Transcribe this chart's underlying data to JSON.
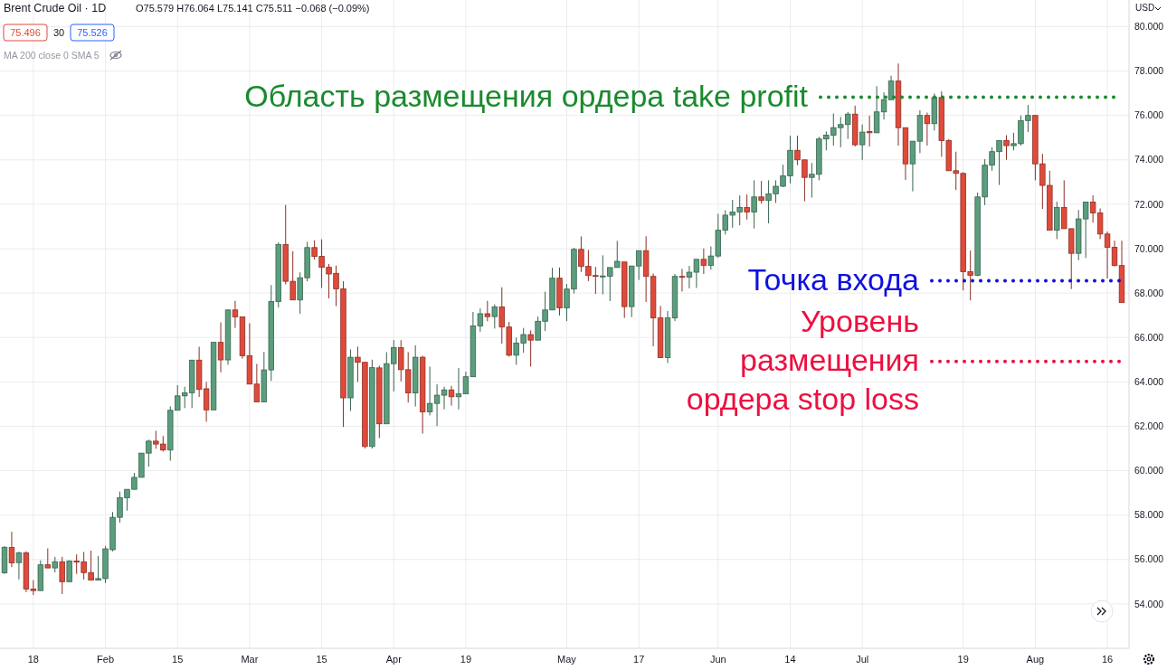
{
  "chart_data": {
    "type": "candlestick",
    "title": "Brent Crude Oil · 1D",
    "ylabel": "USD",
    "annotations": [
      "O75.579 H76.064 L75.141 C75.511 −0.068 (−0.09%)",
      "75.496",
      "30",
      "75.526",
      "MA 200 close 0 SMA 5"
    ],
    "categories": [
      null,
      null,
      null,
      null,
      "18",
      null,
      null,
      null,
      null,
      null,
      null,
      null,
      null,
      null,
      "Feb",
      null,
      null,
      null,
      null,
      null,
      null,
      null,
      null,
      null,
      "15",
      null,
      null,
      null,
      null,
      null,
      null,
      null,
      null,
      null,
      "Mar",
      null,
      null,
      null,
      null,
      null,
      null,
      null,
      null,
      null,
      "15",
      null,
      null,
      null,
      null,
      null,
      null,
      null,
      null,
      null,
      "Apr",
      null,
      null,
      null,
      null,
      null,
      null,
      null,
      null,
      null,
      "19",
      null,
      null,
      null,
      null,
      null,
      null,
      null,
      null,
      null,
      null,
      null,
      null,
      null,
      "May",
      null,
      null,
      null,
      null,
      null,
      null,
      null,
      null,
      null,
      "17",
      null,
      null,
      null,
      null,
      null,
      null,
      null,
      null,
      null,
      null,
      "Jun",
      null,
      null,
      null,
      null,
      null,
      null,
      null,
      null,
      null,
      "14",
      null,
      null,
      null,
      null,
      null,
      null,
      null,
      null,
      null,
      "Jul",
      null,
      null,
      null,
      null,
      null,
      null,
      null,
      null,
      null,
      null,
      null,
      null,
      null,
      "19",
      null,
      null,
      null,
      null,
      null,
      null,
      null,
      null,
      null,
      "Aug",
      null,
      null,
      null,
      null,
      null,
      null,
      null,
      null,
      null,
      "16",
      null,
      null
    ],
    "ohlc": [
      [
        55.4,
        56.6,
        55.35,
        56.55
      ],
      [
        56.54,
        57.25,
        55.66,
        55.85
      ],
      [
        55.86,
        56.35,
        55.1,
        56.3
      ],
      [
        56.3,
        56.37,
        54.53,
        54.67
      ],
      [
        54.67,
        55.07,
        54.4,
        54.6
      ],
      [
        54.6,
        55.96,
        54.6,
        55.76
      ],
      [
        55.76,
        56.5,
        55.62,
        55.62
      ],
      [
        55.62,
        56.12,
        55.42,
        55.9
      ],
      [
        55.9,
        56.12,
        54.44,
        55.0
      ],
      [
        55.0,
        55.97,
        55.0,
        55.93
      ],
      [
        55.93,
        56.23,
        55.35,
        55.88
      ],
      [
        55.9,
        56.34,
        55.1,
        55.41
      ],
      [
        55.41,
        56.4,
        55.07,
        55.07
      ],
      [
        55.07,
        56.16,
        55.07,
        55.14
      ],
      [
        55.14,
        56.6,
        54.94,
        56.48
      ],
      [
        56.44,
        58.14,
        56.37,
        57.9
      ],
      [
        57.9,
        59.06,
        57.66,
        58.78
      ],
      [
        58.78,
        59.16,
        58.2,
        59.16
      ],
      [
        59.16,
        59.9,
        59.16,
        59.7
      ],
      [
        59.7,
        60.79,
        59.7,
        60.79
      ],
      [
        60.79,
        61.4,
        60.18,
        61.33
      ],
      [
        61.33,
        61.8,
        60.99,
        61.2
      ],
      [
        61.2,
        61.56,
        60.86,
        60.93
      ],
      [
        60.93,
        62.9,
        60.45,
        62.72
      ],
      [
        62.72,
        63.85,
        62.72,
        63.37
      ],
      [
        63.37,
        63.78,
        62.82,
        63.51
      ],
      [
        63.51,
        64.98,
        62.82,
        64.98
      ],
      [
        64.98,
        65.58,
        63.32,
        63.66
      ],
      [
        63.69,
        64.0,
        62.2,
        62.74
      ],
      [
        62.74,
        65.8,
        62.74,
        65.78
      ],
      [
        65.78,
        66.68,
        64.43,
        64.99
      ],
      [
        64.99,
        67.24,
        64.77,
        67.24
      ],
      [
        67.24,
        67.65,
        66.43,
        66.93
      ],
      [
        66.93,
        66.93,
        65.05,
        65.18
      ],
      [
        65.18,
        66.64,
        63.9,
        63.9
      ],
      [
        63.9,
        64.81,
        63.1,
        63.1
      ],
      [
        63.1,
        65.35,
        63.1,
        64.54
      ],
      [
        64.54,
        68.36,
        64.04,
        67.62
      ],
      [
        67.62,
        70.28,
        67.35,
        70.19
      ],
      [
        70.19,
        71.97,
        68.39,
        68.53
      ],
      [
        68.53,
        69.88,
        67.69,
        67.69
      ],
      [
        67.69,
        68.93,
        67.07,
        68.69
      ],
      [
        68.69,
        70.31,
        68.53,
        70.05
      ],
      [
        70.05,
        70.38,
        69.51,
        69.65
      ],
      [
        69.65,
        70.42,
        68.23,
        69.16
      ],
      [
        69.16,
        69.31,
        67.76,
        68.86
      ],
      [
        68.89,
        69.24,
        67.41,
        68.19
      ],
      [
        68.19,
        68.53,
        61.97,
        63.28
      ],
      [
        63.28,
        65.46,
        62.69,
        65.11
      ],
      [
        65.11,
        65.59,
        64.0,
        64.88
      ],
      [
        64.88,
        64.88,
        61.0,
        61.09
      ],
      [
        61.09,
        65.0,
        61.0,
        64.64
      ],
      [
        64.63,
        64.73,
        61.47,
        62.11
      ],
      [
        62.11,
        65.34,
        62.11,
        64.82
      ],
      [
        64.82,
        65.88,
        63.57,
        65.54
      ],
      [
        65.54,
        65.88,
        64.02,
        64.55
      ],
      [
        64.55,
        65.34,
        63.07,
        63.5
      ],
      [
        63.5,
        65.65,
        62.89,
        65.11
      ],
      [
        65.11,
        65.18,
        61.67,
        62.65
      ],
      [
        62.65,
        64.69,
        62.49,
        63.03
      ],
      [
        63.03,
        63.89,
        62.01,
        63.4
      ],
      [
        63.4,
        63.78,
        62.76,
        63.64
      ],
      [
        63.64,
        63.82,
        62.93,
        63.33
      ],
      [
        63.33,
        64.63,
        62.76,
        63.46
      ],
      [
        63.46,
        64.46,
        63.46,
        64.23
      ],
      [
        64.23,
        67.15,
        64.23,
        66.52
      ],
      [
        66.52,
        67.31,
        66.26,
        67.07
      ],
      [
        67.07,
        67.65,
        66.73,
        66.94
      ],
      [
        66.94,
        67.49,
        66.4,
        67.38
      ],
      [
        67.38,
        68.26,
        65.72,
        66.47
      ],
      [
        66.47,
        66.7,
        65.14,
        65.2
      ],
      [
        65.2,
        66.0,
        64.77,
        65.75
      ],
      [
        65.75,
        66.43,
        65.31,
        66.13
      ],
      [
        66.13,
        66.32,
        64.69,
        65.88
      ],
      [
        65.88,
        66.94,
        65.88,
        66.73
      ],
      [
        66.73,
        68.06,
        66.29,
        67.24
      ],
      [
        67.24,
        69.14,
        67.24,
        68.67
      ],
      [
        68.67,
        69.15,
        66.99,
        67.33
      ],
      [
        67.33,
        68.41,
        66.74,
        68.18
      ],
      [
        68.18,
        70.04,
        67.98,
        69.97
      ],
      [
        69.97,
        70.55,
        68.95,
        69.2
      ],
      [
        69.2,
        69.94,
        68.54,
        68.79
      ],
      [
        68.79,
        69.18,
        67.96,
        68.75
      ],
      [
        68.75,
        69.7,
        67.94,
        68.77
      ],
      [
        68.76,
        69.15,
        67.64,
        69.15
      ],
      [
        69.15,
        70.35,
        69.15,
        69.43
      ],
      [
        69.4,
        69.4,
        66.88,
        67.39
      ],
      [
        67.39,
        69.22,
        66.92,
        69.22
      ],
      [
        69.22,
        69.91,
        68.59,
        69.91
      ],
      [
        69.91,
        70.56,
        67.6,
        68.75
      ],
      [
        68.75,
        68.88,
        65.6,
        66.88
      ],
      [
        66.88,
        67.42,
        65.09,
        65.09
      ],
      [
        65.09,
        67.19,
        64.85,
        66.88
      ],
      [
        66.88,
        68.86,
        66.74,
        68.75
      ],
      [
        68.75,
        69.09,
        68.07,
        68.72
      ],
      [
        68.72,
        69.22,
        68.21,
        68.94
      ],
      [
        68.94,
        69.52,
        68.23,
        69.52
      ],
      [
        69.52,
        70.01,
        68.86,
        69.25
      ],
      [
        69.25,
        70.1,
        69.05,
        69.67
      ],
      [
        69.67,
        71.57,
        69.59,
        70.83
      ],
      [
        70.83,
        71.73,
        70.64,
        71.51
      ],
      [
        71.51,
        72.2,
        70.94,
        71.65
      ],
      [
        71.65,
        72.4,
        71.05,
        71.86
      ],
      [
        71.86,
        72.44,
        71.31,
        71.65
      ],
      [
        71.65,
        73.08,
        70.91,
        72.33
      ],
      [
        72.33,
        73.05,
        72.03,
        72.17
      ],
      [
        72.17,
        73.08,
        71.14,
        72.47
      ],
      [
        72.47,
        73.08,
        72.06,
        72.81
      ],
      [
        72.81,
        73.78,
        72.77,
        73.28
      ],
      [
        73.28,
        75.09,
        72.94,
        74.43
      ],
      [
        74.43,
        75.09,
        73.76,
        74.0
      ],
      [
        74.0,
        74.0,
        72.13,
        73.21
      ],
      [
        73.21,
        73.86,
        72.3,
        73.35
      ],
      [
        73.35,
        75.04,
        73.08,
        74.94
      ],
      [
        74.94,
        75.28,
        74.43,
        75.11
      ],
      [
        75.11,
        76.09,
        74.64,
        75.45
      ],
      [
        75.45,
        75.93,
        74.57,
        75.59
      ],
      [
        75.59,
        76.16,
        74.94,
        76.06
      ],
      [
        76.06,
        76.44,
        74.6,
        74.68
      ],
      [
        74.68,
        75.59,
        74.0,
        75.25
      ],
      [
        75.28,
        75.99,
        74.6,
        75.22
      ],
      [
        75.22,
        77.32,
        75.22,
        76.16
      ],
      [
        76.16,
        77.04,
        75.82,
        76.71
      ],
      [
        76.71,
        77.79,
        76.71,
        77.55
      ],
      [
        77.55,
        78.34,
        74.64,
        75.45
      ],
      [
        75.45,
        75.45,
        73.1,
        73.82
      ],
      [
        73.82,
        74.84,
        72.58,
        74.84
      ],
      [
        74.84,
        76.23,
        74.3,
        76.0
      ],
      [
        76.0,
        76.13,
        74.64,
        75.63
      ],
      [
        75.63,
        76.99,
        75.32,
        76.81
      ],
      [
        76.81,
        77.08,
        74.14,
        74.87
      ],
      [
        74.87,
        74.94,
        73.51,
        73.51
      ],
      [
        73.51,
        74.37,
        72.64,
        73.39
      ],
      [
        73.39,
        73.44,
        68.12,
        68.96
      ],
      [
        68.96,
        69.92,
        67.67,
        68.8
      ],
      [
        68.8,
        72.53,
        68.76,
        72.33
      ],
      [
        72.33,
        74.03,
        71.96,
        73.76
      ],
      [
        73.76,
        74.57,
        73.51,
        74.37
      ],
      [
        74.37,
        74.87,
        72.87,
        74.87
      ],
      [
        74.87,
        75.11,
        74.0,
        74.64
      ],
      [
        74.64,
        75.22,
        74.43,
        74.73
      ],
      [
        74.73,
        76.0,
        74.64,
        75.77
      ],
      [
        75.77,
        76.47,
        75.25,
        76.0
      ],
      [
        76.0,
        76.0,
        73.08,
        73.82
      ],
      [
        73.82,
        74.27,
        71.79,
        72.85
      ],
      [
        72.85,
        73.51,
        70.83,
        70.83
      ],
      [
        70.83,
        72.12,
        70.43,
        71.85
      ],
      [
        71.85,
        73.08,
        70.9,
        70.9
      ],
      [
        70.9,
        70.9,
        68.18,
        69.79
      ],
      [
        69.79,
        71.74,
        69.48,
        71.34
      ],
      [
        71.34,
        72.1,
        69.58,
        72.1
      ],
      [
        72.1,
        72.4,
        71.17,
        71.61
      ],
      [
        71.61,
        71.81,
        70.43,
        70.66
      ],
      [
        70.66,
        70.77,
        68.66,
        70.06
      ],
      [
        70.06,
        70.36,
        69.2,
        69.24
      ],
      [
        69.24,
        70.36,
        67.57,
        67.57
      ]
    ],
    "colors": [
      "#5b9e7d",
      "#e04a3a",
      "#5b9e7d",
      "#e04a3a",
      "#e04a3a",
      "#5b9e7d",
      "#e04a3a",
      "#5b9e7d",
      "#e04a3a",
      "#5b9e7d",
      "#e04a3a",
      "#e04a3a",
      "#e04a3a",
      "#5b9e7d",
      "#5b9e7d",
      "#5b9e7d",
      "#5b9e7d",
      "#5b9e7d",
      "#5b9e7d",
      "#5b9e7d",
      "#5b9e7d",
      "#e04a3a",
      "#e04a3a",
      "#5b9e7d",
      "#5b9e7d",
      "#5b9e7d",
      "#5b9e7d",
      "#e04a3a",
      "#e04a3a",
      "#5b9e7d",
      "#e04a3a",
      "#5b9e7d",
      "#e04a3a",
      "#e04a3a",
      "#e04a3a",
      "#e04a3a",
      "#5b9e7d",
      "#5b9e7d",
      "#5b9e7d",
      "#e04a3a",
      "#e04a3a",
      "#5b9e7d",
      "#5b9e7d",
      "#e04a3a",
      "#e04a3a",
      "#e04a3a",
      "#e04a3a",
      "#e04a3a",
      "#5b9e7d",
      "#e04a3a",
      "#e04a3a",
      "#5b9e7d",
      "#e04a3a",
      "#5b9e7d",
      "#5b9e7d",
      "#e04a3a",
      "#e04a3a",
      "#5b9e7d",
      "#e04a3a",
      "#5b9e7d",
      "#5b9e7d",
      "#5b9e7d",
      "#e04a3a",
      "#5b9e7d",
      "#5b9e7d",
      "#5b9e7d",
      "#5b9e7d",
      "#e04a3a",
      "#5b9e7d",
      "#e04a3a",
      "#e04a3a",
      "#5b9e7d",
      "#5b9e7d",
      "#e04a3a",
      "#5b9e7d",
      "#5b9e7d",
      "#5b9e7d",
      "#e04a3a",
      "#5b9e7d",
      "#5b9e7d",
      "#e04a3a",
      "#e04a3a",
      "#e04a3a",
      "#5b9e7d",
      "#5b9e7d",
      "#5b9e7d",
      "#e04a3a",
      "#5b9e7d",
      "#5b9e7d",
      "#e04a3a",
      "#e04a3a",
      "#e04a3a",
      "#5b9e7d",
      "#5b9e7d",
      "#e04a3a",
      "#5b9e7d",
      "#5b9e7d",
      "#e04a3a",
      "#5b9e7d",
      "#5b9e7d",
      "#5b9e7d",
      "#5b9e7d",
      "#5b9e7d",
      "#e04a3a",
      "#5b9e7d",
      "#e04a3a",
      "#5b9e7d",
      "#5b9e7d",
      "#5b9e7d",
      "#5b9e7d",
      "#e04a3a",
      "#e04a3a",
      "#5b9e7d",
      "#5b9e7d",
      "#5b9e7d",
      "#5b9e7d",
      "#5b9e7d",
      "#5b9e7d",
      "#e04a3a",
      "#5b9e7d",
      "#e04a3a",
      "#5b9e7d",
      "#5b9e7d",
      "#5b9e7d",
      "#e04a3a",
      "#e04a3a",
      "#5b9e7d",
      "#5b9e7d",
      "#e04a3a",
      "#5b9e7d",
      "#e04a3a",
      "#e04a3a",
      "#e04a3a",
      "#e04a3a",
      "#e04a3a",
      "#5b9e7d",
      "#5b9e7d",
      "#5b9e7d",
      "#5b9e7d",
      "#e04a3a",
      "#5b9e7d",
      "#5b9e7d",
      "#5b9e7d",
      "#e04a3a",
      "#e04a3a",
      "#e04a3a",
      "#5b9e7d",
      "#e04a3a",
      "#e04a3a",
      "#5b9e7d",
      "#5b9e7d",
      "#e04a3a",
      "#e04a3a",
      "#e04a3a",
      "#e04a3a",
      "#e04a3a"
    ],
    "ylim": [
      52.0,
      81.2
    ],
    "yticks": [
      {
        "value": 54,
        "label": "54.000"
      },
      {
        "value": 56,
        "label": "56.000"
      },
      {
        "value": 58,
        "label": "58.000"
      },
      {
        "value": 60,
        "label": "60.000"
      },
      {
        "value": 62,
        "label": "62.000"
      },
      {
        "value": 64,
        "label": "64.000"
      },
      {
        "value": 66,
        "label": "66.000"
      },
      {
        "value": 68,
        "label": "68.000"
      },
      {
        "value": 70,
        "label": "70.000"
      },
      {
        "value": 72,
        "label": "72.000"
      },
      {
        "value": 74,
        "label": "74.000"
      },
      {
        "value": 76,
        "label": "76.000"
      },
      {
        "value": 78,
        "label": "78.000"
      },
      {
        "value": 80,
        "label": "80.000"
      }
    ],
    "grid": true,
    "ref_lines": [
      {
        "axis": "y",
        "value": 76.82,
        "label": "Область размещения ордера take profit",
        "color": "#1a8a2e",
        "line_style": "dotted"
      },
      {
        "axis": "y",
        "value": 68.55,
        "label": "Точка входа",
        "color": "#1010e0",
        "line_style": "dotted"
      },
      {
        "axis": "y",
        "value": 64.92,
        "label": "Уровень\nразмещения\nордера stop loss",
        "color": "#ec1040",
        "line_style": "dotted"
      }
    ]
  }
}
